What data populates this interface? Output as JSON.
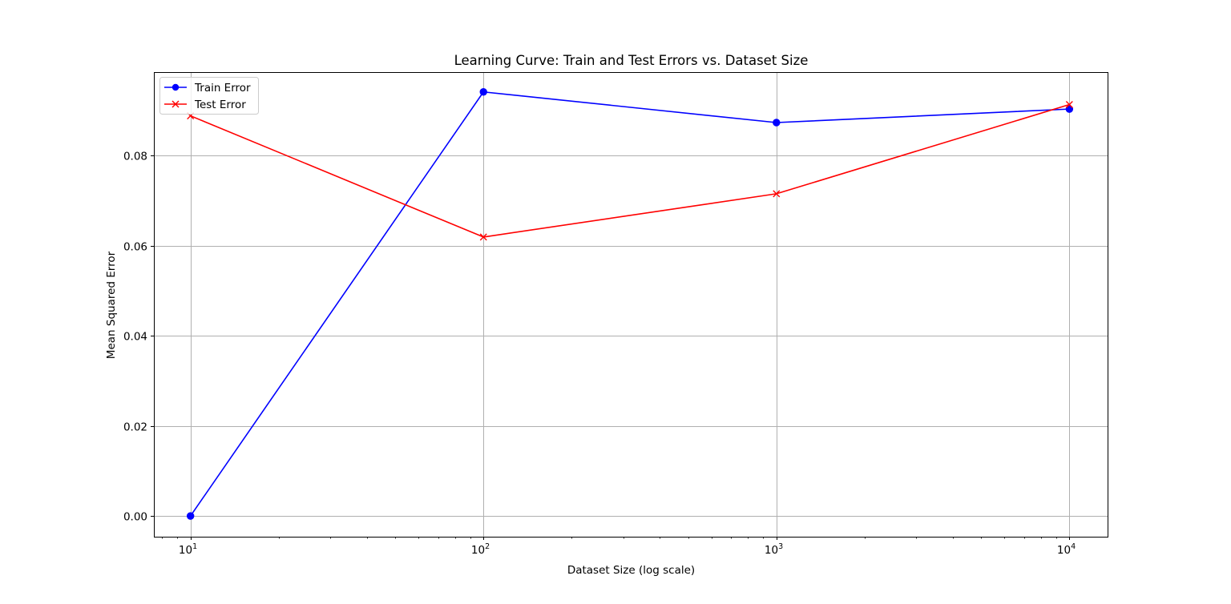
{
  "chart_data": {
    "type": "line",
    "title": "Learning Curve: Train and Test Errors vs. Dataset Size",
    "xlabel": "Dataset Size (log scale)",
    "ylabel": "Mean Squared Error",
    "x_scale": "log",
    "x": [
      10,
      100,
      1000,
      10000
    ],
    "xlim": [
      7.5,
      13500
    ],
    "ylim": [
      -0.0046,
      0.0985
    ],
    "x_ticks": [
      10,
      100,
      1000,
      10000
    ],
    "x_tick_labels": [
      {
        "base": "10",
        "exp": "1"
      },
      {
        "base": "10",
        "exp": "2"
      },
      {
        "base": "10",
        "exp": "3"
      },
      {
        "base": "10",
        "exp": "4"
      }
    ],
    "y_ticks": [
      0,
      0.02,
      0.04,
      0.06,
      0.08
    ],
    "y_tick_labels": [
      "0.00",
      "0.02",
      "0.04",
      "0.06",
      "0.08"
    ],
    "grid": true,
    "legend_position": "upper-left",
    "series": [
      {
        "name": "Train Error",
        "color": "#0000ff",
        "marker": "circle",
        "values": [
          0.0,
          0.0941,
          0.0873,
          0.0903
        ]
      },
      {
        "name": "Test Error",
        "color": "#ff0000",
        "marker": "x",
        "values": [
          0.0888,
          0.0619,
          0.0715,
          0.0913
        ]
      }
    ]
  }
}
